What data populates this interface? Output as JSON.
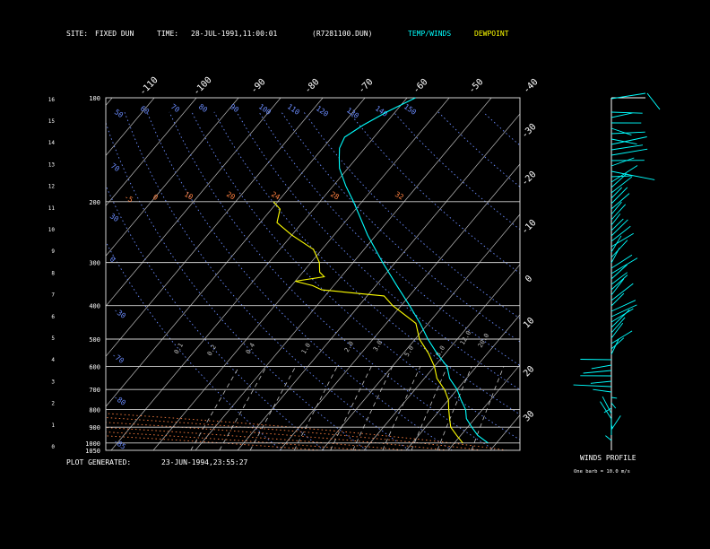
{
  "header": {
    "site_label": "SITE:",
    "site_value": "FIXED DUN",
    "time_label": "TIME:",
    "time_value": "28-JUL-1991,11:00:01",
    "file": "(R7281100.DUN)",
    "temp_legend": "TEMP/WINDS",
    "dew_legend": "DEWPOINT"
  },
  "footer": {
    "generated_label": "PLOT GENERATED:",
    "generated_value": "23-JUN-1994,23:55:27"
  },
  "wind_panel": {
    "title": "WINDS PROFILE",
    "note": "One barb = 10.0 m/s"
  },
  "colors": {
    "temp": "#00ffff",
    "dewpoint": "#ffff00",
    "isotherm": "#bbbbbb",
    "dry_adiabat": "#6b8cff",
    "moist_adiabat": "#ff8040",
    "mixing_ratio": "#c0c0c0"
  },
  "chart_data": {
    "type": "line",
    "pressure_ticks": [
      100,
      200,
      300,
      400,
      500,
      600,
      700,
      800,
      900,
      1000,
      1050
    ],
    "height_ticks": [
      0,
      1,
      2,
      3,
      4,
      5,
      6,
      7,
      8,
      9,
      10,
      11,
      12,
      13,
      14,
      15,
      16
    ],
    "temp_top_ticks": [
      "-110",
      "-100",
      "-90",
      "-80",
      "-70",
      "-60",
      "-50",
      "-40"
    ],
    "temp_right_ticks": [
      "-30",
      "-20",
      "-10",
      "0",
      "10",
      "20",
      "30"
    ],
    "dry_adiabat_labels": [
      "50",
      "60",
      "70",
      "80",
      "90",
      "100",
      "110",
      "120",
      "130",
      "140",
      "150"
    ],
    "moist_adiabat_labels": [
      "-5",
      "0",
      "10",
      "20",
      "24",
      "28",
      "32"
    ],
    "mixing_ratio_labels": [
      "0.1",
      "0.2",
      "0.4",
      "1.0",
      "2.0",
      "3.0",
      "5.0",
      "8.0",
      "12.0",
      "20.0"
    ],
    "series": [
      {
        "name": "TEMP/WINDS",
        "points": [
          [
            1000,
            28
          ],
          [
            950,
            24
          ],
          [
            900,
            21
          ],
          [
            850,
            18
          ],
          [
            800,
            16
          ],
          [
            750,
            13
          ],
          [
            700,
            10
          ],
          [
            650,
            6
          ],
          [
            600,
            3
          ],
          [
            550,
            -2
          ],
          [
            500,
            -7
          ],
          [
            450,
            -12
          ],
          [
            400,
            -18
          ],
          [
            350,
            -25
          ],
          [
            300,
            -33
          ],
          [
            250,
            -42
          ],
          [
            200,
            -52
          ],
          [
            180,
            -57
          ],
          [
            160,
            -62
          ],
          [
            150,
            -64
          ],
          [
            140,
            -66
          ],
          [
            130,
            -67
          ],
          [
            120,
            -65
          ],
          [
            110,
            -62
          ],
          [
            100,
            -58
          ]
        ]
      },
      {
        "name": "DEWPOINT",
        "points": [
          [
            1000,
            22
          ],
          [
            950,
            19
          ],
          [
            900,
            16
          ],
          [
            850,
            14
          ],
          [
            800,
            12
          ],
          [
            750,
            10
          ],
          [
            700,
            7
          ],
          [
            650,
            3
          ],
          [
            600,
            0
          ],
          [
            550,
            -4
          ],
          [
            500,
            -9
          ],
          [
            450,
            -13
          ],
          [
            400,
            -22
          ],
          [
            375,
            -26
          ],
          [
            360,
            -42
          ],
          [
            350,
            -45
          ],
          [
            340,
            -50
          ],
          [
            330,
            -44
          ],
          [
            320,
            -46
          ],
          [
            300,
            -48
          ],
          [
            275,
            -52
          ],
          [
            250,
            -60
          ],
          [
            230,
            -66
          ],
          [
            210,
            -68
          ],
          [
            200,
            -71
          ]
        ]
      }
    ]
  }
}
